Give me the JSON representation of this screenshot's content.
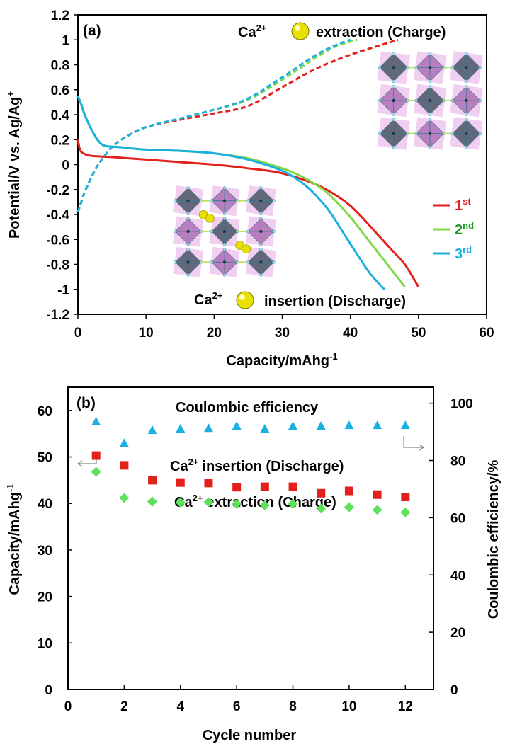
{
  "chart_data": [
    {
      "panel": "(a)",
      "type": "line",
      "xlabel": "Capacity/mAhg",
      "xlabel_sup": "-1",
      "ylabel": "Potential/V vs. Ag/Ag",
      "ylabel_sup": "+",
      "xlim": [
        0,
        60
      ],
      "ylim": [
        -1.2,
        1.2
      ],
      "xticks": [
        "0",
        "10",
        "20",
        "30",
        "40",
        "50",
        "60"
      ],
      "yticks": [
        "-1.2",
        "-1",
        "-0.8",
        "-0.6",
        "-0.4",
        "-0.2",
        "0",
        "0.2",
        "0.4",
        "0.6",
        "0.8",
        "1",
        "1.2"
      ],
      "annotations": {
        "charge": {
          "prefix": "Ca",
          "sup": "2+",
          "text": "extraction (Charge)"
        },
        "discharge": {
          "prefix": "Ca",
          "sup": "2+",
          "text": "insertion (Discharge)"
        }
      },
      "series": [
        {
          "name": "1",
          "sup": "st",
          "color": "#e3201b",
          "discharge": {
            "x": [
              0,
              0.3,
              0.8,
              2,
              5,
              10,
              15,
              20,
              25,
              30,
              35,
              38,
              40,
              42,
              44,
              46,
              48,
              50
            ],
            "y": [
              0.2,
              0.12,
              0.09,
              0.07,
              0.06,
              0.04,
              0.02,
              0.0,
              -0.03,
              -0.07,
              -0.16,
              -0.25,
              -0.33,
              -0.44,
              -0.56,
              -0.68,
              -0.8,
              -0.98
            ]
          },
          "charge": {
            "x": [
              0,
              0.5,
              1,
              2,
              3,
              5,
              7,
              10,
              15,
              20,
              25,
              30,
              35,
              40,
              44,
              47
            ],
            "y": [
              -0.38,
              -0.3,
              -0.22,
              -0.1,
              0.0,
              0.14,
              0.22,
              0.3,
              0.36,
              0.41,
              0.47,
              0.62,
              0.77,
              0.88,
              0.95,
              1.0
            ]
          }
        },
        {
          "name": "2",
          "sup": "nd",
          "color": "#7fd84a",
          "discharge": {
            "x": [
              0,
              0.5,
              1,
              2,
              3,
              4,
              6,
              10,
              15,
              20,
              25,
              30,
              33,
              36,
              38,
              40,
              42,
              44,
              46,
              48
            ],
            "y": [
              0.55,
              0.48,
              0.4,
              0.28,
              0.19,
              0.15,
              0.14,
              0.12,
              0.11,
              0.09,
              0.05,
              -0.03,
              -0.1,
              -0.2,
              -0.3,
              -0.42,
              -0.56,
              -0.7,
              -0.84,
              -0.98
            ]
          },
          "charge": {
            "x": [
              0,
              0.5,
              1,
              2,
              3,
              5,
              7,
              10,
              15,
              20,
              25,
              30,
              35,
              38,
              41
            ],
            "y": [
              -0.38,
              -0.3,
              -0.22,
              -0.1,
              0.0,
              0.14,
              0.22,
              0.3,
              0.37,
              0.44,
              0.52,
              0.68,
              0.86,
              0.95,
              1.0
            ]
          }
        },
        {
          "name": "3",
          "sup": "rd",
          "color": "#1ab0e0",
          "discharge": {
            "x": [
              0,
              0.5,
              1,
              2,
              3,
              4,
              6,
              10,
              15,
              20,
              25,
              30,
              33,
              35,
              37,
              39,
              41,
              43,
              45
            ],
            "y": [
              0.55,
              0.48,
              0.4,
              0.28,
              0.19,
              0.15,
              0.14,
              0.12,
              0.11,
              0.09,
              0.04,
              -0.05,
              -0.15,
              -0.25,
              -0.38,
              -0.55,
              -0.72,
              -0.88,
              -1.0
            ]
          },
          "charge": {
            "x": [
              0,
              0.5,
              1,
              2,
              3,
              5,
              7,
              10,
              15,
              20,
              25,
              30,
              35,
              38,
              40
            ],
            "y": [
              -0.38,
              -0.3,
              -0.22,
              -0.1,
              0.0,
              0.14,
              0.22,
              0.3,
              0.37,
              0.44,
              0.53,
              0.7,
              0.88,
              0.96,
              1.0
            ]
          }
        }
      ]
    },
    {
      "panel": "(b)",
      "type": "scatter",
      "xlabel": "Cycle number",
      "ylabel_left": "Capacity/mAhg",
      "ylabel_left_sup": "-1",
      "ylabel_right": "Coulombic efficiency/%",
      "xlim": [
        0,
        13
      ],
      "ylim_left": [
        0,
        65
      ],
      "ylim_right": [
        0,
        105.6
      ],
      "xticks": [
        "0",
        "2",
        "4",
        "6",
        "8",
        "10",
        "12"
      ],
      "yticks_left": [
        "0",
        "10",
        "20",
        "30",
        "40",
        "50",
        "60"
      ],
      "yticks_right": [
        "0",
        "20",
        "40",
        "60",
        "80",
        "100"
      ],
      "x": [
        1,
        2,
        3,
        4,
        5,
        6,
        7,
        8,
        9,
        10,
        11,
        12
      ],
      "series": [
        {
          "name": "Coulombic efficiency",
          "axis": "right",
          "marker": "triangle",
          "color": "#1ab0e0",
          "values": [
            93.5,
            86.0,
            90.5,
            91.0,
            91.2,
            92.0,
            91.0,
            92.0,
            92.0,
            92.2,
            92.2,
            92.2
          ]
        },
        {
          "name": "Ca2+ insertion (Discharge)",
          "prefix": "Ca",
          "sup": "2+",
          "text": "insertion (Discharge)",
          "axis": "left",
          "marker": "square",
          "color": "#e3201b",
          "values": [
            50.3,
            48.2,
            45.0,
            44.5,
            44.4,
            43.5,
            43.6,
            43.6,
            42.2,
            42.7,
            41.9,
            41.4
          ]
        },
        {
          "name": "Ca2+ extraction (Charge)",
          "prefix": "Ca",
          "sup": "2+",
          "text": "extraction (Charge)",
          "axis": "left",
          "marker": "diamond",
          "color": "#5ee05a",
          "values": [
            46.8,
            41.2,
            40.4,
            40.2,
            40.3,
            39.9,
            39.6,
            39.9,
            38.9,
            39.2,
            38.6,
            38.1
          ]
        }
      ],
      "label_colors": {
        "coulombic": "#1ab0e0",
        "insertion": "#e3201b",
        "extraction": "#1a9a1a"
      }
    }
  ]
}
